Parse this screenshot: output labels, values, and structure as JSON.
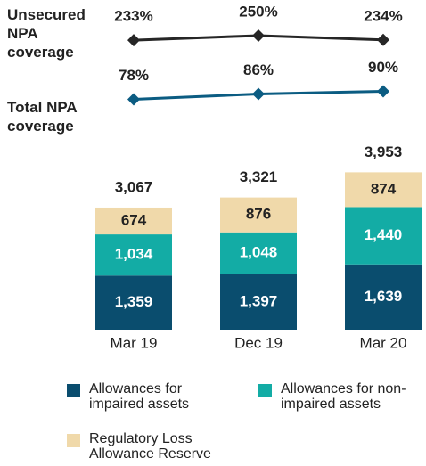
{
  "chart_data": [
    {
      "type": "line",
      "series": [
        {
          "name": "Unsecured NPA coverage",
          "color": "#262626",
          "values": [
            233,
            250,
            234
          ],
          "value_labels": [
            "233%",
            "250%",
            "234%"
          ]
        }
      ],
      "categories": [
        "Mar 19",
        "Dec 19",
        "Mar 20"
      ],
      "ylim": [
        150,
        350
      ]
    },
    {
      "type": "line",
      "series": [
        {
          "name": "Total NPA coverage",
          "color": "#0b5c82",
          "values": [
            78,
            86,
            90
          ],
          "value_labels": [
            "78%",
            "86%",
            "90%"
          ]
        }
      ],
      "categories": [
        "Mar 19",
        "Dec 19",
        "Mar 20"
      ],
      "ylim": [
        40,
        120
      ]
    },
    {
      "type": "bar",
      "stacked": true,
      "categories": [
        "Mar 19",
        "Dec 19",
        "Mar 20"
      ],
      "ylim": [
        0,
        4700
      ],
      "series": [
        {
          "name": "Allowances for impaired assets",
          "color": "#0a4d6e",
          "values": [
            1359,
            1397,
            1639
          ],
          "value_labels": [
            "1,359",
            "1,397",
            "1,639"
          ]
        },
        {
          "name": "Allowances for non-impaired assets",
          "color": "#13aca5",
          "values": [
            1034,
            1048,
            1440
          ],
          "value_labels": [
            "1,034",
            "1,048",
            "1,440"
          ]
        },
        {
          "name": "Regulatory Loss Allowance Reserve",
          "color": "#f0d9aa",
          "values": [
            674,
            876,
            874
          ],
          "value_labels": [
            "674",
            "876",
            "874"
          ]
        }
      ],
      "total_labels": [
        "3,067",
        "3,321",
        "3,953"
      ]
    }
  ]
}
